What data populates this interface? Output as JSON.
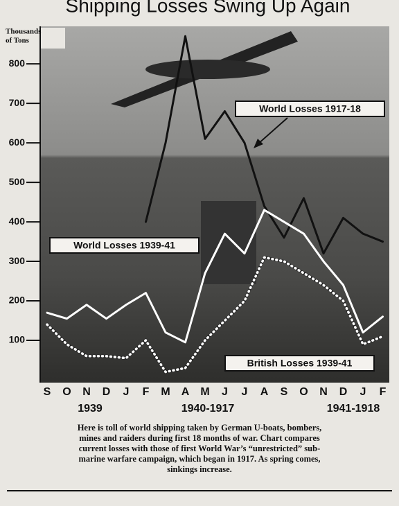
{
  "chart_data": {
    "type": "line",
    "title": "Shipping Losses Swing Up Again",
    "y_label": [
      "Thousands",
      "of Tons"
    ],
    "categories": [
      "S",
      "O",
      "N",
      "D",
      "J",
      "F",
      "M",
      "A",
      "M",
      "J",
      "J",
      "A",
      "S",
      "O",
      "N",
      "D",
      "J",
      "F"
    ],
    "year_labels": [
      "1939",
      "1940-1917",
      "1941-1918"
    ],
    "ylim": [
      0,
      895
    ],
    "yticks": [
      100,
      200,
      300,
      400,
      500,
      600,
      700,
      800
    ],
    "series": [
      {
        "name": "World Losses 1917-18",
        "color": "#111111",
        "style": "solid",
        "values": [
          null,
          null,
          null,
          null,
          null,
          400,
          600,
          870,
          610,
          680,
          600,
          440,
          360,
          460,
          320,
          410,
          370,
          350
        ]
      },
      {
        "name": "World Losses 1939-41",
        "color": "#ffffff",
        "style": "solid",
        "values": [
          170,
          155,
          190,
          155,
          190,
          220,
          120,
          95,
          270,
          370,
          320,
          430,
          400,
          370,
          300,
          240,
          120,
          160
        ]
      },
      {
        "name": "British Losses 1939-41",
        "color": "#ffffff",
        "style": "dotted",
        "values": [
          140,
          90,
          60,
          60,
          55,
          100,
          20,
          30,
          100,
          150,
          200,
          310,
          300,
          270,
          240,
          200,
          90,
          110
        ]
      }
    ],
    "caption": [
      "Here is toll of world shipping taken by German U-boats, bombers,",
      "mines and raiders during first 18 months of war. Chart compares",
      "current losses with those of first World War’s “unrestricted” sub-",
      "marine warfare campaign, which began in 1917. As spring comes,",
      "sinkings increase."
    ]
  }
}
